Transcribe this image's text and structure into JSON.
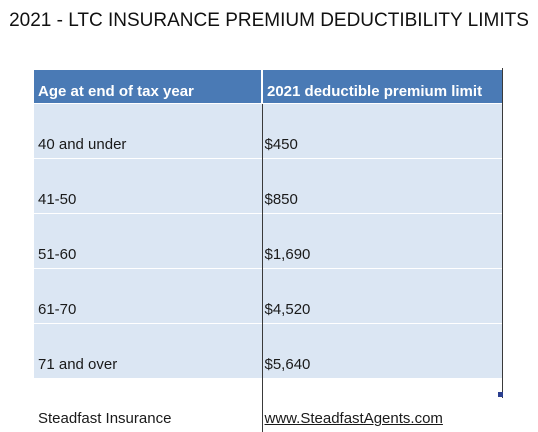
{
  "title": "2021 - LTC INSURANCE PREMIUM DEDUCTIBILITY LIMITS",
  "table": {
    "headers": [
      "Age at end of tax year",
      "2021 deductible premium limit"
    ],
    "rows": [
      [
        "40 and under",
        "$450"
      ],
      [
        "41-50",
        "$850"
      ],
      [
        "51-60",
        "$1,690"
      ],
      [
        "61-70",
        "$4,520"
      ],
      [
        "71 and over",
        "$5,640"
      ]
    ]
  },
  "footer": {
    "company": "Steadfast Insurance",
    "website": "www.SteadfastAgents.com"
  },
  "colors": {
    "header_bg": "#4a7ab5",
    "row_bg": "#dbe6f3"
  }
}
